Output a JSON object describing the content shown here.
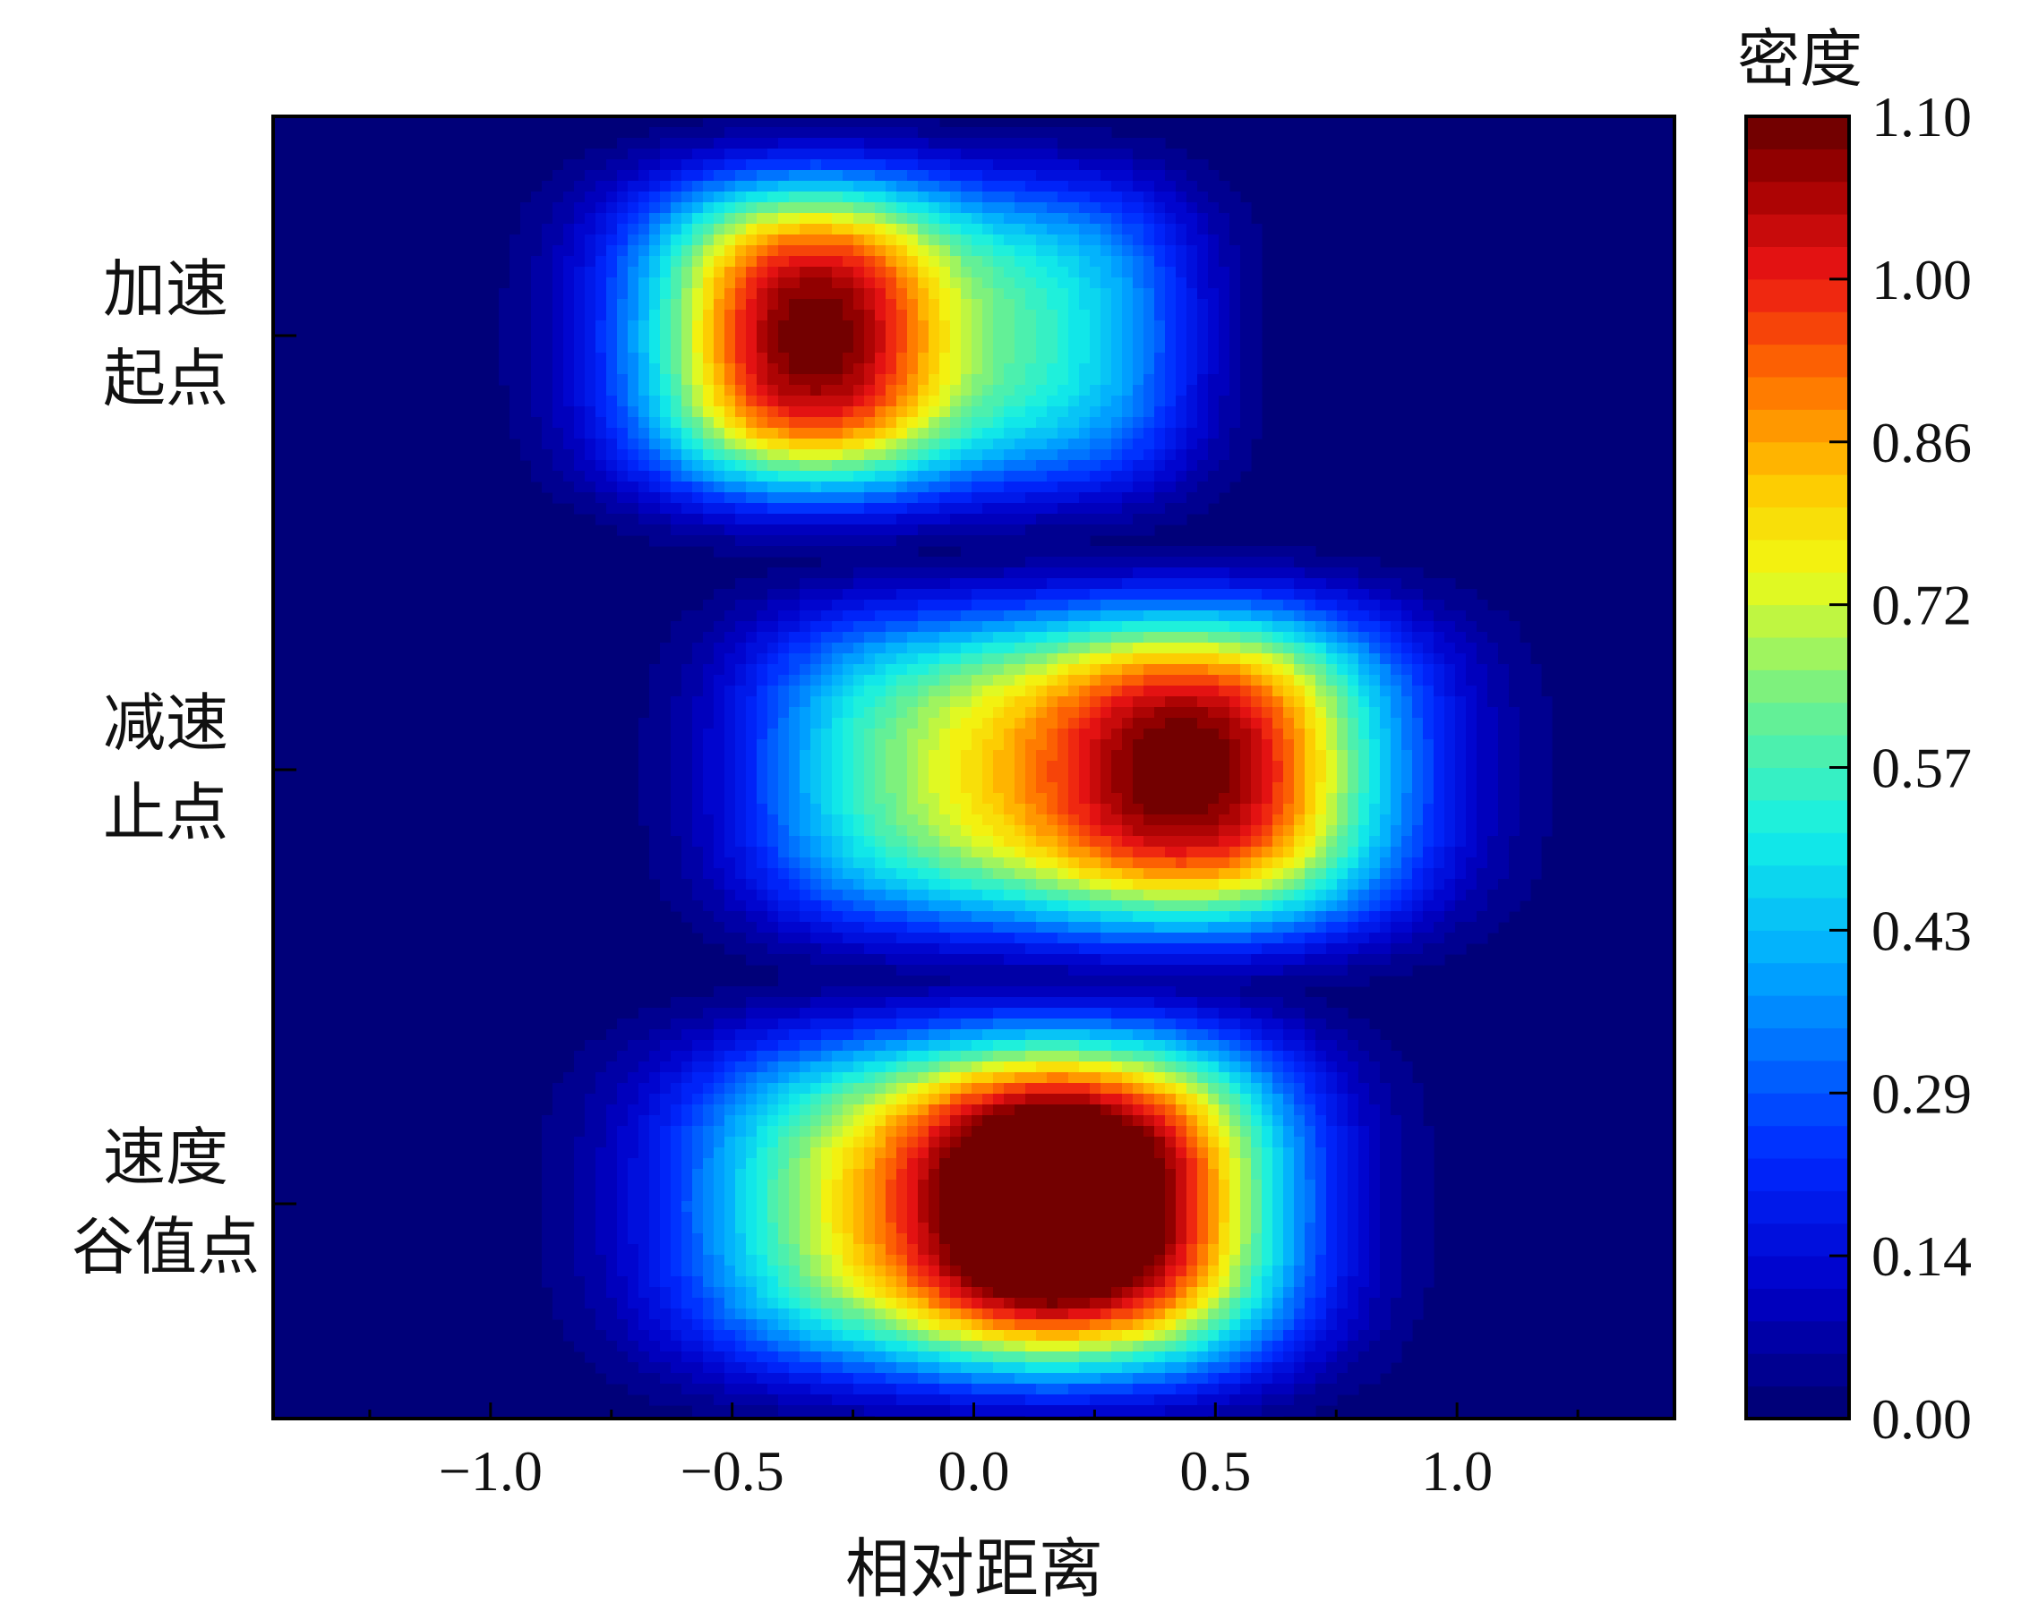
{
  "chart_data": {
    "type": "heatmap",
    "xlabel": "相对距离",
    "ylabel": "",
    "xlim": [
      -1.45,
      1.45
    ],
    "x_ticks": [
      -1.0,
      -0.5,
      0.0,
      0.5,
      1.0
    ],
    "x_tick_labels": [
      "−1.0",
      "−0.5",
      "0.0",
      "0.5",
      "1.0"
    ],
    "rows": [
      {
        "label_lines": [
          "加速",
          "起点"
        ]
      },
      {
        "label_lines": [
          "减速",
          "止点"
        ]
      },
      {
        "label_lines": [
          "速度",
          "谷值点"
        ]
      }
    ],
    "density_peaks": [
      {
        "row": 0,
        "x": -0.33,
        "value": 1.1
      },
      {
        "row": 0,
        "x": 0.22,
        "value": 0.62
      },
      {
        "row": 1,
        "x": 0.45,
        "value": 1.1
      },
      {
        "row": 1,
        "x": -0.15,
        "value": 0.72
      },
      {
        "row": 2,
        "x": 0.28,
        "value": 1.1
      },
      {
        "row": 2,
        "x": -0.2,
        "value": 0.82
      }
    ],
    "colorbar": {
      "title": "密度",
      "range": [
        0.0,
        1.1
      ],
      "ticks": [
        1.1,
        1.0,
        0.86,
        0.72,
        0.57,
        0.43,
        0.29,
        0.14,
        0.0
      ],
      "tick_labels": [
        "1.10",
        "1.00",
        "0.86",
        "0.72",
        "0.57",
        "0.43",
        "0.29",
        "0.14",
        "0.00"
      ],
      "levels": 40,
      "colormap": "jet"
    },
    "grid": false
  }
}
